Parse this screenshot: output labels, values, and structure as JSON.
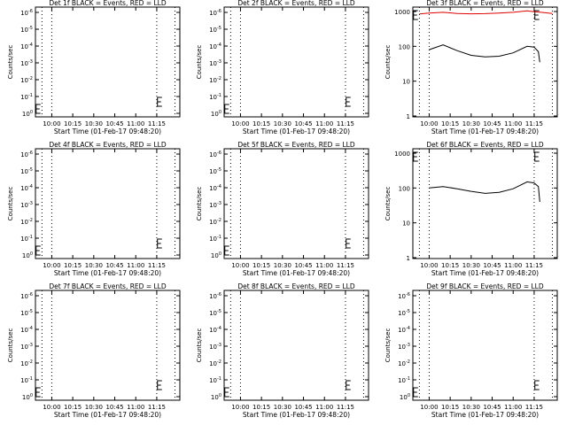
{
  "chart_data": [
    {
      "type": "line",
      "title": "Det 1f BLACK = Events, RED = LLD",
      "ylabel": "Counts/sec",
      "xlabel": "Start Time (01-Feb-17 09:48:20)",
      "x_ticks": [
        "10:00",
        "10:15",
        "10:30",
        "10:45",
        "11:00",
        "11:15"
      ],
      "y_scale": "log",
      "y_ticks": [
        "10^0",
        "10^-1",
        "10^-2",
        "10^-3",
        "10^-4",
        "10^-5",
        "10^-6"
      ],
      "series": []
    },
    {
      "type": "line",
      "title": "Det 2f BLACK = Events, RED = LLD",
      "ylabel": "Counts/sec",
      "xlabel": "Start Time (01-Feb-17 09:48:20)",
      "x_ticks": [
        "10:00",
        "10:15",
        "10:30",
        "10:45",
        "11:00",
        "11:15"
      ],
      "y_scale": "log",
      "y_ticks": [
        "10^0",
        "10^-1",
        "10^-2",
        "10^-3",
        "10^-4",
        "10^-5",
        "10^-6"
      ],
      "series": []
    },
    {
      "type": "line",
      "title": "Det 3f BLACK = Events, RED = LLD",
      "ylabel": "Counts/sec",
      "xlabel": "Start Time (01-Feb-17 09:48:20)",
      "x_ticks": [
        "10:00",
        "10:15",
        "10:30",
        "10:45",
        "11:00",
        "11:15"
      ],
      "y_scale": "log",
      "y_ticks": [
        "1000",
        "100",
        "10",
        "1"
      ],
      "series": [
        {
          "color": "#000000",
          "x": [
            0,
            10,
            20,
            30,
            40,
            50,
            60,
            70,
            75,
            78,
            79
          ],
          "y": [
            80,
            110,
            75,
            55,
            50,
            52,
            65,
            100,
            95,
            70,
            35
          ]
        },
        {
          "color": "#e00000",
          "x": [
            -7,
            0,
            10,
            20,
            30,
            40,
            50,
            60,
            70,
            75,
            80,
            88
          ],
          "y": [
            850,
            900,
            950,
            880,
            860,
            870,
            900,
            950,
            1050,
            980,
            950,
            880
          ]
        }
      ]
    },
    {
      "type": "line",
      "title": "Det 4f BLACK = Events, RED = LLD",
      "ylabel": "Counts/sec",
      "xlabel": "Start Time (01-Feb-17 09:48:20)",
      "x_ticks": [
        "10:00",
        "10:15",
        "10:30",
        "10:45",
        "11:00",
        "11:15"
      ],
      "y_scale": "log",
      "y_ticks": [
        "10^0",
        "10^-1",
        "10^-2",
        "10^-3",
        "10^-4",
        "10^-5",
        "10^-6"
      ],
      "series": []
    },
    {
      "type": "line",
      "title": "Det 5f BLACK = Events, RED = LLD",
      "ylabel": "Counts/sec",
      "xlabel": "Start Time (01-Feb-17 09:48:20)",
      "x_ticks": [
        "10:00",
        "10:15",
        "10:30",
        "10:45",
        "11:00",
        "11:15"
      ],
      "y_scale": "log",
      "y_ticks": [
        "10^0",
        "10^-1",
        "10^-2",
        "10^-3",
        "10^-4",
        "10^-5",
        "10^-6"
      ],
      "series": []
    },
    {
      "type": "line",
      "title": "Det 6f BLACK = Events, RED = LLD",
      "ylabel": "Counts/sec",
      "xlabel": "Start Time (01-Feb-17 09:48:20)",
      "x_ticks": [
        "10:00",
        "10:15",
        "10:30",
        "10:45",
        "11:00",
        "11:15"
      ],
      "y_scale": "log",
      "y_ticks": [
        "1000",
        "100",
        "10",
        "1"
      ],
      "series": [
        {
          "color": "#000000",
          "x": [
            0,
            10,
            20,
            30,
            40,
            50,
            60,
            70,
            75,
            78,
            79
          ],
          "y": [
            100,
            110,
            95,
            80,
            70,
            75,
            95,
            150,
            140,
            110,
            40
          ]
        }
      ]
    },
    {
      "type": "line",
      "title": "Det 7f BLACK = Events, RED = LLD",
      "ylabel": "Counts/sec",
      "xlabel": "Start Time (01-Feb-17 09:48:20)",
      "x_ticks": [
        "10:00",
        "10:15",
        "10:30",
        "10:45",
        "11:00",
        "11:15"
      ],
      "y_scale": "log",
      "y_ticks": [
        "10^0",
        "10^-1",
        "10^-2",
        "10^-3",
        "10^-4",
        "10^-5",
        "10^-6"
      ],
      "series": []
    },
    {
      "type": "line",
      "title": "Det 8f BLACK = Events, RED = LLD",
      "ylabel": "Counts/sec",
      "xlabel": "Start Time (01-Feb-17 09:48:20)",
      "x_ticks": [
        "10:00",
        "10:15",
        "10:30",
        "10:45",
        "11:00",
        "11:15"
      ],
      "y_scale": "log",
      "y_ticks": [
        "10^0",
        "10^-1",
        "10^-2",
        "10^-3",
        "10^-4",
        "10^-5",
        "10^-6"
      ],
      "series": []
    },
    {
      "type": "line",
      "title": "Det 9f BLACK = Events, RED = LLD",
      "ylabel": "Counts/sec",
      "xlabel": "Start Time (01-Feb-17 09:48:20)",
      "x_ticks": [
        "10:00",
        "10:15",
        "10:30",
        "10:45",
        "11:00",
        "11:15"
      ],
      "y_scale": "log",
      "y_ticks": [
        "10^0",
        "10^-1",
        "10^-2",
        "10^-3",
        "10^-4",
        "10^-5",
        "10^-6"
      ],
      "series": []
    }
  ]
}
